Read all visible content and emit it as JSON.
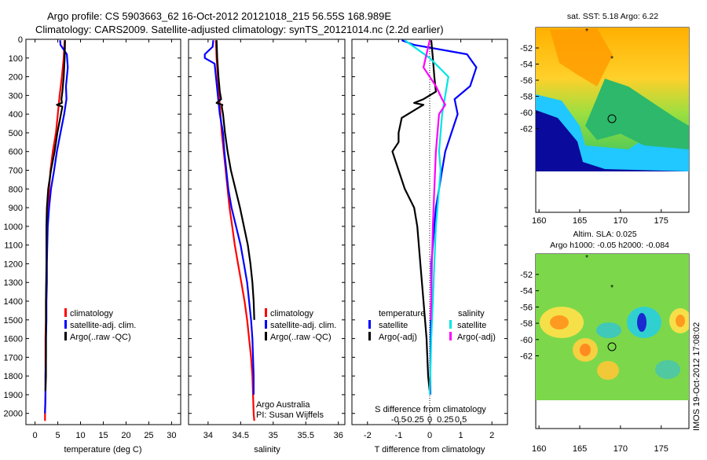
{
  "header": {
    "line1": "Argo profile: CS 5903663_62 16-Oct-2012 20121018_215 56.55S 168.989E",
    "line2": "Climatology: CARS2009. Satellite-adjusted climatology: synTS_20121014.nc (2.2d earlier)"
  },
  "colors": {
    "clim": "#ff0000",
    "sat": "#0000ff",
    "argo": "#000000",
    "salsat": "#00e5e5",
    "salargo": "#ff00ff"
  },
  "chart_data": [
    {
      "type": "line",
      "name": "temperature",
      "xlabel": "temperature (deg C)",
      "xlim": [
        -2,
        32
      ],
      "ylim": [
        0,
        2060
      ],
      "xticks": [
        "0",
        "5",
        "10",
        "15",
        "20",
        "25",
        "30"
      ],
      "xtick_values": [
        0,
        5,
        10,
        15,
        20,
        25,
        30
      ],
      "yticks": [
        "0",
        "100",
        "200",
        "300",
        "400",
        "500",
        "600",
        "700",
        "800",
        "900",
        "1000",
        "1100",
        "1200",
        "1300",
        "1400",
        "1500",
        "1600",
        "1700",
        "1800",
        "1900",
        "2000"
      ],
      "ytick_values": [
        0,
        100,
        200,
        300,
        400,
        500,
        600,
        700,
        800,
        900,
        1000,
        1100,
        1200,
        1300,
        1400,
        1500,
        1600,
        1700,
        1800,
        1900,
        2000
      ],
      "legend": [
        "climatology",
        "satellite-adj. clim.",
        "Argo(..raw -QC)"
      ],
      "series": [
        {
          "name": "climatology",
          "color": "#ff0000",
          "x": [
            6.5,
            6.3,
            5.9,
            5.4,
            5,
            4.6,
            3.9,
            3.4,
            3.1,
            2.9,
            2.7,
            2.6,
            2.5,
            2.5,
            2.4,
            2.4,
            2.3,
            2.3,
            2.3,
            2.3,
            2.2,
            2.2
          ],
          "y": [
            5,
            100,
            200,
            300,
            400,
            500,
            600,
            700,
            800,
            900,
            1000,
            1100,
            1200,
            1300,
            1400,
            1500,
            1600,
            1700,
            1800,
            1900,
            2000,
            2040
          ]
        },
        {
          "name": "satellite-adj. clim.",
          "color": "#0000ff",
          "x": [
            5.5,
            5.6,
            7,
            7.2,
            6.8,
            6.9,
            6.4,
            5.6,
            4.8,
            4.2,
            3.5,
            3.1,
            2.8,
            2.7,
            2.6,
            2.6,
            2.5,
            2.5,
            2.4,
            2.4,
            2.3,
            2.3,
            2.2
          ],
          "y": [
            5,
            30,
            80,
            150,
            250,
            320,
            400,
            500,
            600,
            700,
            800,
            900,
            1000,
            1100,
            1200,
            1300,
            1400,
            1500,
            1600,
            1700,
            1800,
            1900,
            2000
          ]
        },
        {
          "name": "Argo(..raw -QC)",
          "color": "#000000",
          "x": [
            6.6,
            6.5,
            6.3,
            6,
            5.8,
            5.9,
            4.8,
            6,
            5.7,
            4.9,
            4.3,
            3.5,
            2.9,
            2.6,
            2.5,
            2.5,
            2.4,
            2.4,
            2.4,
            2.3
          ],
          "y": [
            5,
            100,
            200,
            280,
            320,
            340,
            350,
            360,
            400,
            500,
            600,
            700,
            800,
            900,
            1000,
            1200,
            1400,
            1600,
            1800,
            1880
          ]
        }
      ]
    },
    {
      "type": "line",
      "name": "salinity",
      "xlabel": "salinity",
      "xlim": [
        33.7,
        36.1
      ],
      "ylim": [
        0,
        2060
      ],
      "xticks": [
        "34",
        "34.5",
        "35",
        "35.5",
        "36"
      ],
      "xtick_values": [
        34,
        34.5,
        35,
        35.5,
        36
      ],
      "legend": [
        "climatology",
        "satellite-adj. clim.",
        "Argo(..raw -QC)"
      ],
      "annotation": [
        "Argo Australia",
        "PI: Susan Wijffels"
      ],
      "series": [
        {
          "name": "climatology",
          "color": "#ff0000",
          "x": [
            34.12,
            34.13,
            34.15,
            34.17,
            34.19,
            34.21,
            34.24,
            34.27,
            34.3,
            34.33,
            34.37,
            34.41,
            34.46,
            34.51,
            34.56,
            34.6,
            34.63,
            34.66,
            34.68,
            34.69,
            34.7,
            34.71
          ],
          "y": [
            5,
            100,
            200,
            300,
            400,
            500,
            600,
            700,
            800,
            900,
            1000,
            1100,
            1200,
            1300,
            1400,
            1500,
            1600,
            1700,
            1800,
            1900,
            2000,
            2040
          ]
        },
        {
          "name": "satellite-adj. clim.",
          "color": "#0000ff",
          "x": [
            34.08,
            34.07,
            33.95,
            33.95,
            34.1,
            34.15,
            34.18,
            34.23,
            34.25,
            34.28,
            34.31,
            34.36,
            34.43,
            34.5,
            34.55,
            34.6,
            34.63,
            34.66,
            34.68,
            34.69,
            34.7,
            34.7
          ],
          "y": [
            5,
            40,
            80,
            100,
            130,
            300,
            400,
            500,
            600,
            700,
            800,
            900,
            1000,
            1100,
            1200,
            1300,
            1400,
            1500,
            1600,
            1700,
            1800,
            1900
          ]
        },
        {
          "name": "Argo(..raw -QC)",
          "color": "#000000",
          "x": [
            34.13,
            34.14,
            34.16,
            34.18,
            34.2,
            34.13,
            34.22,
            34.21,
            34.23,
            34.26,
            34.3,
            34.35,
            34.42,
            34.49,
            34.55,
            34.61,
            34.65,
            34.68,
            34.7,
            34.71
          ],
          "y": [
            5,
            100,
            200,
            280,
            320,
            340,
            350,
            360,
            400,
            500,
            600,
            700,
            800,
            900,
            1000,
            1100,
            1200,
            1300,
            1400,
            1500
          ]
        }
      ]
    },
    {
      "type": "line",
      "name": "differences",
      "xlabel": "T difference from climatology",
      "xlabel2": "S difference from climatology",
      "xlim": [
        -2.5,
        2.5
      ],
      "ylim": [
        0,
        2060
      ],
      "xticks": [
        "-2",
        "-1",
        "0",
        "1",
        "2"
      ],
      "xtick_values": [
        -2,
        -1,
        0,
        1,
        2
      ],
      "sticks": [
        "-0.5",
        "-0.25",
        "0",
        "0.25",
        "0.5"
      ],
      "stick_values": [
        -1,
        -0.5,
        0,
        0.5,
        1
      ],
      "legend_titles": [
        "temperature",
        "salinity"
      ],
      "legend": [
        "satellite",
        "Argo(-adj)",
        "satellite",
        "Argo(-adj)"
      ],
      "series": [
        {
          "name": "temperature satellite",
          "color": "#0000ff",
          "x": [
            -0.9,
            -0.5,
            1.2,
            1.5,
            1.3,
            0.8,
            0.9,
            0.7,
            0.5,
            0.4,
            0.3,
            0.2,
            0.15,
            0.1,
            0.05,
            0.05,
            0.03,
            0.02,
            0.02
          ],
          "y": [
            5,
            30,
            80,
            150,
            250,
            320,
            400,
            500,
            600,
            700,
            800,
            900,
            1000,
            1100,
            1200,
            1400,
            1600,
            1800,
            1900
          ]
        },
        {
          "name": "temperature Argo(-adj)",
          "color": "#000000",
          "x": [
            0.05,
            0.1,
            0.15,
            0.2,
            -0.2,
            -0.5,
            -0.2,
            -0.3,
            -0.9,
            -1,
            -1,
            -1.2,
            -1,
            -0.8,
            -0.5,
            -0.4,
            -0.3,
            -0.2,
            -0.1,
            -0.05,
            0
          ],
          "y": [
            5,
            100,
            200,
            280,
            320,
            340,
            350,
            360,
            420,
            500,
            550,
            600,
            700,
            800,
            900,
            1000,
            1200,
            1400,
            1600,
            1800,
            1880
          ]
        },
        {
          "name": "salinity satellite",
          "color": "#00e5e5",
          "x": [
            -0.8,
            0,
            0.6,
            0.4,
            0.3,
            0.35,
            0.3,
            0.25,
            0.2,
            0.15,
            0.1,
            0.05,
            0.02,
            0
          ],
          "y": [
            5,
            100,
            200,
            400,
            600,
            700,
            800,
            900,
            1000,
            1200,
            1400,
            1600,
            1800,
            1900
          ]
        },
        {
          "name": "salinity Argo(-adj)",
          "color": "#ff00ff",
          "x": [
            0,
            -0.2,
            0.2,
            0.4,
            0.5,
            0.3,
            0.25,
            0.2,
            0.15,
            0.1,
            0.07,
            0.05,
            0.03
          ],
          "y": [
            5,
            150,
            250,
            320,
            350,
            400,
            500,
            600,
            800,
            1000,
            1200,
            1400,
            1500
          ]
        }
      ]
    }
  ],
  "maps": [
    {
      "title": "sat. SST: 5.18 Argo: 6.22",
      "xticks": [
        "160",
        "165",
        "170",
        "175"
      ],
      "yticks": [
        "-52",
        "-54",
        "-56",
        "-58",
        "-60",
        "-62"
      ]
    },
    {
      "title1": "Altim. SLA: 0.025",
      "title2": "Argo h1000: -0.05 h2000: -0.084",
      "xticks": [
        "160",
        "165",
        "170",
        "175"
      ],
      "yticks": [
        "-52",
        "-54",
        "-56",
        "-58",
        "-60",
        "-62"
      ]
    }
  ],
  "footer": {
    "stamp": "IMOS 19-Oct-2012 17:08:02"
  }
}
